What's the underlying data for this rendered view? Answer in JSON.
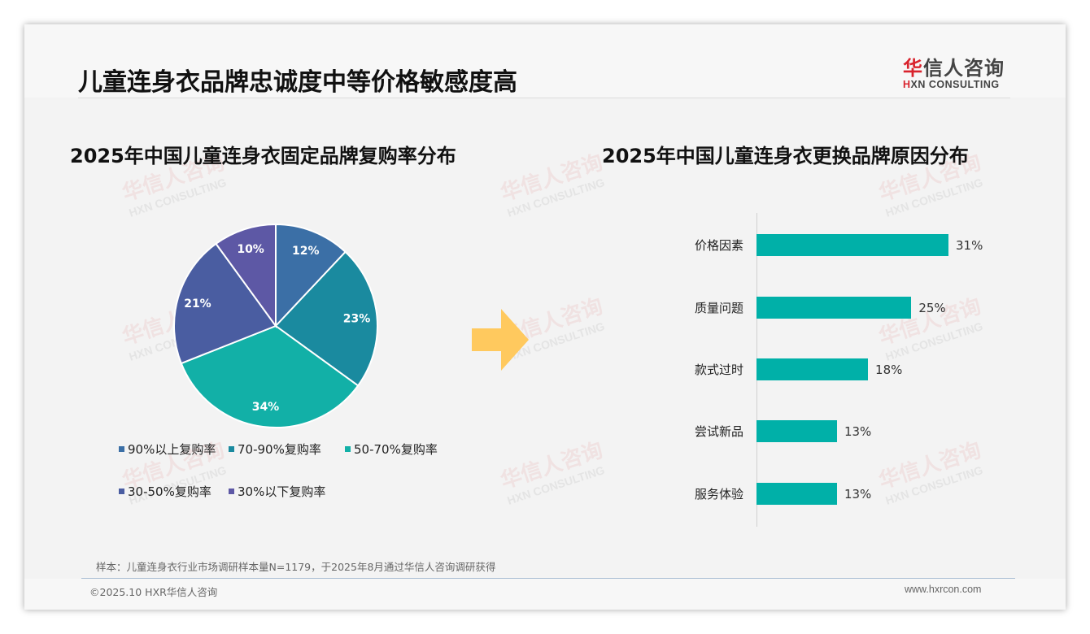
{
  "header": {
    "title": "儿童连身衣品牌忠诚度中等价格敏感度高",
    "logo_cn_red": "华",
    "logo_cn_rest": "信人咨询",
    "logo_en_red": "H",
    "logo_en_rest": "XN CONSULTING"
  },
  "watermark": {
    "cn": "华信人咨询",
    "en": "HXN CONSULTING"
  },
  "left_chart": {
    "title": "2025年中国儿童连身衣固定品牌复购率分布"
  },
  "right_chart": {
    "title": "2025年中国儿童连身衣更换品牌原因分布"
  },
  "arrow": {
    "icon": "right-arrow-icon",
    "color": "#ffc95e"
  },
  "footer": {
    "sample_note": "样本：儿童连身衣行业市场调研样本量N=1179，于2025年8月通过华信人咨询调研获得",
    "copyright": "©2025.10 HXR华信人咨询",
    "website": "www.hxrcon.com"
  },
  "chart_data": [
    {
      "type": "pie",
      "title": "2025年中国儿童连身衣固定品牌复购率分布",
      "categories": [
        "90%以上复购率",
        "70-90%复购率",
        "50-70%复购率",
        "30-50%复购率",
        "30%以下复购率"
      ],
      "values": [
        12,
        23,
        34,
        21,
        10
      ],
      "labels": [
        "12%",
        "23%",
        "34%",
        "21%",
        "10%"
      ],
      "colors": [
        "#3b6fa6",
        "#1a8a9f",
        "#12b0a7",
        "#4a5da1",
        "#5d58a5"
      ],
      "legend_position": "bottom",
      "start_angle": "12 o'clock, clockwise"
    },
    {
      "type": "bar",
      "orientation": "horizontal",
      "title": "2025年中国儿童连身衣更换品牌原因分布",
      "categories": [
        "价格因素",
        "质量问题",
        "款式过时",
        "尝试新品",
        "服务体验"
      ],
      "values": [
        31,
        25,
        18,
        13,
        13
      ],
      "labels": [
        "31%",
        "25%",
        "18%",
        "13%",
        "13%"
      ],
      "color": "#00b0a8",
      "xlabel": "",
      "ylabel": "",
      "grid": false
    }
  ]
}
